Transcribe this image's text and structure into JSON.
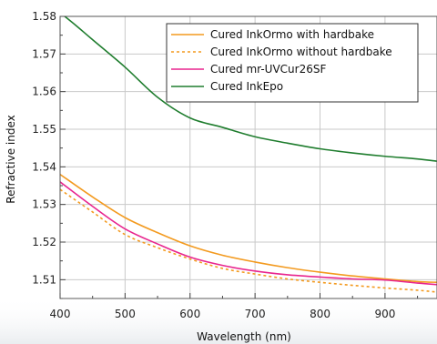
{
  "chart_data": {
    "type": "line",
    "title": "",
    "xlabel": "Wavelength (nm)",
    "ylabel": "Refractive index",
    "xlim": [
      400,
      980
    ],
    "ylim": [
      1.505,
      1.58
    ],
    "x_ticks": [
      400,
      500,
      600,
      700,
      800,
      900
    ],
    "x_tick_labels": [
      "400",
      "500",
      "600",
      "700",
      "800",
      "900"
    ],
    "y_ticks": [
      1.51,
      1.52,
      1.53,
      1.54,
      1.55,
      1.56,
      1.57,
      1.58
    ],
    "y_tick_labels": [
      "1.51",
      "1.52",
      "1.53",
      "1.54",
      "1.55",
      "1.56",
      "1.57",
      "1.58"
    ],
    "grid": true,
    "legend_position": "top-right",
    "series": [
      {
        "name": "Cured InkOrmo with hardbake",
        "color": "#f39a1f",
        "style": "solid",
        "x": [
          400,
          450,
          500,
          550,
          600,
          650,
          700,
          750,
          800,
          850,
          900,
          950,
          980
        ],
        "y": [
          1.538,
          1.532,
          1.5265,
          1.5225,
          1.519,
          1.5165,
          1.5147,
          1.5132,
          1.512,
          1.511,
          1.5102,
          1.5095,
          1.5093
        ]
      },
      {
        "name": "Cured InkOrmo without hardbake",
        "color": "#f39a1f",
        "style": "dotted",
        "x": [
          400,
          450,
          500,
          550,
          600,
          650,
          700,
          750,
          800,
          850,
          900,
          950,
          980
        ],
        "y": [
          1.534,
          1.528,
          1.522,
          1.5185,
          1.5155,
          1.513,
          1.5115,
          1.5102,
          1.5093,
          1.5085,
          1.5078,
          1.5072,
          1.5067
        ]
      },
      {
        "name": "Cured mr-UVCur26SF",
        "color": "#e8258e",
        "style": "solid",
        "x": [
          400,
          450,
          500,
          550,
          600,
          650,
          700,
          750,
          800,
          850,
          900,
          950,
          980
        ],
        "y": [
          1.536,
          1.5295,
          1.5235,
          1.5195,
          1.516,
          1.5138,
          1.5123,
          1.5113,
          1.5107,
          1.5102,
          1.5099,
          1.5091,
          1.5087
        ]
      },
      {
        "name": "Cured InkEpo",
        "color": "#1f7d2e",
        "style": "solid",
        "x": [
          400,
          425,
          450,
          500,
          550,
          600,
          650,
          700,
          750,
          800,
          850,
          900,
          950,
          980
        ],
        "y": [
          1.581,
          1.5775,
          1.5738,
          1.5665,
          1.5585,
          1.553,
          1.5505,
          1.548,
          1.5463,
          1.5448,
          1.5437,
          1.5428,
          1.5421,
          1.5415
        ]
      }
    ]
  }
}
